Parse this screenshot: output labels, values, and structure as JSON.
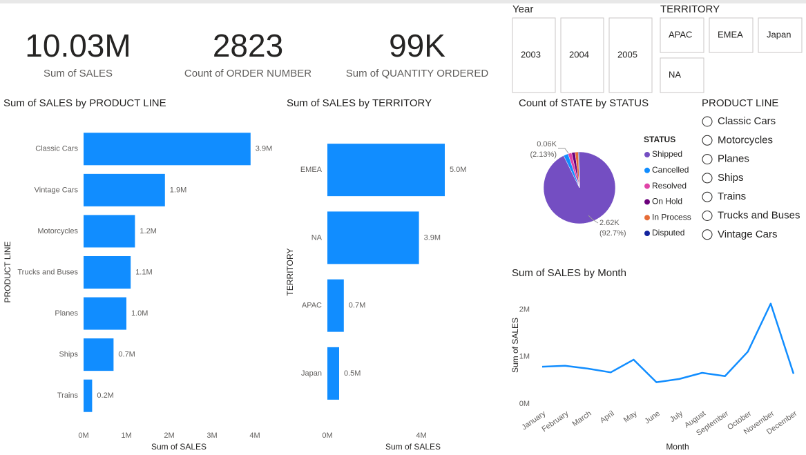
{
  "cards": [
    {
      "value": "10.03M",
      "label": "Sum of SALES"
    },
    {
      "value": "2823",
      "label": "Count of ORDER NUMBER"
    },
    {
      "value": "99K",
      "label": "Sum of QUANTITY ORDERED"
    }
  ],
  "slicers": {
    "year": {
      "title": "Year",
      "items": [
        "2003",
        "2004",
        "2005"
      ]
    },
    "territory": {
      "title": "TERRITORY",
      "items": [
        "APAC",
        "EMEA",
        "Japan",
        "NA"
      ]
    },
    "product_line": {
      "title": "PRODUCT LINE",
      "items": [
        "Classic Cars",
        "Motorcycles",
        "Planes",
        "Ships",
        "Trains",
        "Trucks and Buses",
        "Vintage Cars"
      ]
    }
  },
  "chart_data": [
    {
      "type": "bar",
      "title": "Sum of SALES by PRODUCT LINE",
      "xlabel": "Sum of SALES",
      "ylabel": "PRODUCT LINE",
      "color": "#118dff",
      "categories": [
        "Classic Cars",
        "Vintage Cars",
        "Motorcycles",
        "Trucks and Buses",
        "Planes",
        "Ships",
        "Trains"
      ],
      "values": [
        3900000,
        1900000,
        1200000,
        1100000,
        1000000,
        700000,
        200000
      ],
      "value_labels": [
        "3.9M",
        "1.9M",
        "1.2M",
        "1.1M",
        "1.0M",
        "0.7M",
        "0.2M"
      ],
      "xlim": [
        0,
        4000000
      ],
      "xticks": [
        {
          "value": 0,
          "label": "0M"
        },
        {
          "value": 1000000,
          "label": "1M"
        },
        {
          "value": 2000000,
          "label": "2M"
        },
        {
          "value": 3000000,
          "label": "3M"
        },
        {
          "value": 4000000,
          "label": "4M"
        }
      ]
    },
    {
      "type": "bar",
      "title": "Sum of SALES by TERRITORY",
      "xlabel": "Sum of SALES",
      "ylabel": "TERRITORY",
      "color": "#118dff",
      "categories": [
        "EMEA",
        "NA",
        "APAC",
        "Japan"
      ],
      "values": [
        5000000,
        3900000,
        700000,
        500000
      ],
      "value_labels": [
        "5.0M",
        "3.9M",
        "0.7M",
        "0.5M"
      ],
      "xlim": [
        0,
        5000000
      ],
      "xticks": [
        {
          "value": 0,
          "label": "0M"
        },
        {
          "value": 4000000,
          "label": "4M"
        }
      ]
    },
    {
      "type": "pie",
      "title": "Count of STATE by STATUS",
      "legend_title": "STATUS",
      "categories": [
        "Shipped",
        "Cancelled",
        "Resolved",
        "On Hold",
        "In Process",
        "Disputed"
      ],
      "values": [
        2617,
        60,
        47,
        44,
        41,
        14
      ],
      "value_labels": [
        "2.62K",
        "0.06K",
        null,
        null,
        null,
        null
      ],
      "percent_labels": [
        "(92.7%)",
        "(2.13%)",
        null,
        null,
        null,
        null
      ],
      "colors": [
        "#744ec2",
        "#118dff",
        "#e044a7",
        "#6b007b",
        "#e66c37",
        "#12239e"
      ]
    },
    {
      "type": "line",
      "title": "Sum of SALES by Month",
      "xlabel": "Month",
      "ylabel": "Sum of SALES",
      "color": "#118dff",
      "categories": [
        "January",
        "February",
        "March",
        "April",
        "May",
        "June",
        "July",
        "August",
        "September",
        "October",
        "November",
        "December"
      ],
      "values": [
        790000,
        810000,
        750000,
        670000,
        940000,
        460000,
        530000,
        660000,
        590000,
        1110000,
        2130000,
        640000
      ],
      "ylim": [
        0,
        2200000
      ],
      "yticks": [
        {
          "value": 0,
          "label": "0M"
        },
        {
          "value": 1000000,
          "label": "1M"
        },
        {
          "value": 2000000,
          "label": "2M"
        }
      ]
    }
  ]
}
